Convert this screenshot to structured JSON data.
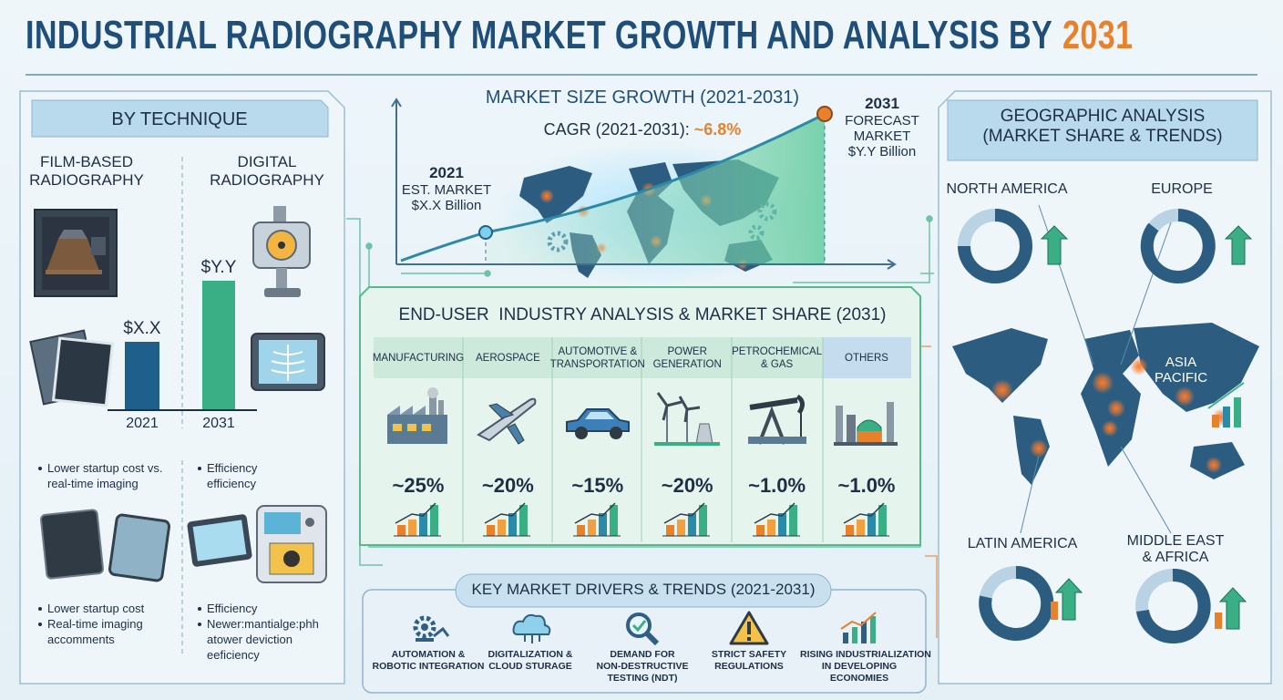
{
  "header": {
    "title": "INDUSTRIAL RADIOGRAPHY MARKET GROWTH AND ANALYSIS BY",
    "title_highlight": "2031"
  },
  "technique": {
    "heading": "BY TECHNIQUE",
    "film": {
      "label": [
        "FILM-BASED",
        "RADIOGRAPHY"
      ],
      "bar_label": "$X.X",
      "year": "2021",
      "bullets": [
        [
          "Lower startup cost vs.",
          "real-time imaging"
        ]
      ],
      "bullets_bottom": [
        [
          "Lower startup cost"
        ],
        [
          "Real-time imaging",
          "accomments"
        ]
      ]
    },
    "digital": {
      "label": [
        "DIGITAL",
        "RADIOGRAPHY"
      ],
      "bar_label": "$Y.Y",
      "year": "2031",
      "bullets": [
        [
          "Efficiency",
          "efficiency"
        ]
      ],
      "bullets_bottom": [
        [
          "Efficiency"
        ],
        [
          "Newer:mantialge:phh",
          "atower deviction",
          "eeficiency"
        ]
      ]
    }
  },
  "growth": {
    "title": "MARKET SIZE GROWTH (2021-2031)",
    "cagr_label": "CAGR (2021-2031):",
    "cagr_value": "~6.8%",
    "start": {
      "year": "2021",
      "lines": [
        "EST. MARKET",
        "$X.X Billion"
      ]
    },
    "end": {
      "year": "2031",
      "lines": [
        "FORECAST",
        "MARKET",
        "$Y.Y Billion"
      ]
    }
  },
  "end_user": {
    "title": "END-USER  INDUSTRY ANALYSIS & MARKET SHARE (2031)",
    "industries": [
      {
        "name": [
          "MANUFACTURING"
        ],
        "share": "~25%"
      },
      {
        "name": [
          "AEROSPACE"
        ],
        "share": "~20%"
      },
      {
        "name": [
          "AUTOMOTIVE &",
          "TRANSPORTATION"
        ],
        "share": "~15%"
      },
      {
        "name": [
          "POWER",
          "GENERATION"
        ],
        "share": "~20%"
      },
      {
        "name": [
          "PETROCHEMICAL",
          "& GAS"
        ],
        "share": "~1.0%"
      },
      {
        "name": [
          "OTHERS"
        ],
        "share": "~1.0%"
      }
    ]
  },
  "drivers": {
    "title": "KEY MARKET DRIVERS & TRENDS (2021-2031)",
    "items": [
      [
        "AUTOMATION &",
        "ROBOTIC INTEGRATION"
      ],
      [
        "DIGITALIZATION &",
        "CLOUD STURAGE"
      ],
      [
        "DEMAND FOR",
        "NON-DESTRUCTIVE",
        "TESTING (NDT)"
      ],
      [
        "STRICT SAFETY",
        "REGULATIONS"
      ],
      [
        "RISING INDUSTRIALIZATION",
        "IN DEVELOPING",
        "ECONOMIES"
      ]
    ]
  },
  "geo": {
    "title": [
      "GEOGRAPHIC ANALYSIS",
      "(MARKET SHARE & TRENDS)"
    ],
    "regions": [
      [
        "NORTH AMERICA"
      ],
      [
        "EUROPE"
      ],
      [
        "ASIA",
        "PACIFIC"
      ],
      [
        "LATIN AMERICA"
      ],
      [
        "MIDDLE EAST",
        "& AFRICA"
      ]
    ]
  }
}
